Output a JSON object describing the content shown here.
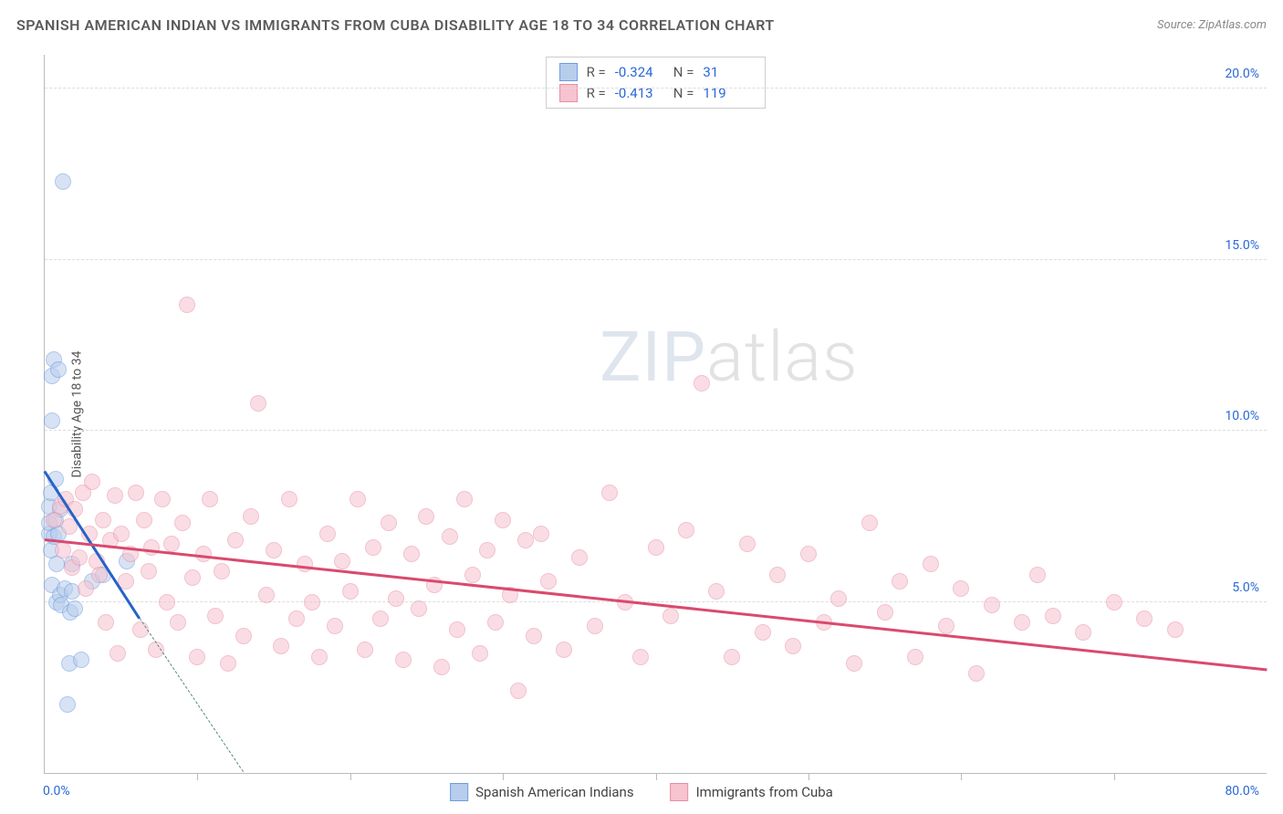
{
  "header": {
    "title": "SPANISH AMERICAN INDIAN VS IMMIGRANTS FROM CUBA DISABILITY AGE 18 TO 34 CORRELATION CHART",
    "source": "Source: ZipAtlas.com"
  },
  "watermark": {
    "bold": "ZIP",
    "thin": "atlas"
  },
  "chart": {
    "type": "scatter",
    "xlim": [
      0,
      80
    ],
    "ylim": [
      0,
      21
    ],
    "x_axis_labels": {
      "left": "0.0%",
      "right": "80.0%"
    },
    "y_gridlines": [
      5,
      10,
      15,
      20
    ],
    "y_labels": [
      "5.0%",
      "10.0%",
      "15.0%",
      "20.0%"
    ],
    "x_ticks": [
      10,
      20,
      30,
      40,
      50,
      60,
      70
    ],
    "y_axis_title": "Disability Age 18 to 34",
    "background_color": "#ffffff",
    "grid_color": "#dddddd",
    "axis_color": "#bbbbbb",
    "label_color": "#2968d8",
    "marker_size": 18,
    "marker_opacity": 0.55,
    "series": [
      {
        "name": "Spanish American Indians",
        "fill": "#b7cdec",
        "stroke": "#6d9be0",
        "trend_color": "#2563c9",
        "trend_dash_color": "#5b8a7a",
        "trend": {
          "x1": 0,
          "y1": 8.8,
          "x2": 6.2,
          "y2": 4.5,
          "dash_x2": 13,
          "dash_y2": 0
        },
        "stats": {
          "r": "-0.324",
          "n": "31"
        },
        "points": [
          [
            0.3,
            7.0
          ],
          [
            0.3,
            7.3
          ],
          [
            0.3,
            7.8
          ],
          [
            0.4,
            6.5
          ],
          [
            0.4,
            8.2
          ],
          [
            0.5,
            5.5
          ],
          [
            0.5,
            10.3
          ],
          [
            0.5,
            11.6
          ],
          [
            0.6,
            12.1
          ],
          [
            0.6,
            6.9
          ],
          [
            0.7,
            7.4
          ],
          [
            0.7,
            8.6
          ],
          [
            0.8,
            5.0
          ],
          [
            0.8,
            6.1
          ],
          [
            0.9,
            11.8
          ],
          [
            0.9,
            7.0
          ],
          [
            1.0,
            5.2
          ],
          [
            1.0,
            7.7
          ],
          [
            1.1,
            4.9
          ],
          [
            1.2,
            17.3
          ],
          [
            1.3,
            5.4
          ],
          [
            1.5,
            2.0
          ],
          [
            1.6,
            3.2
          ],
          [
            1.7,
            4.7
          ],
          [
            1.8,
            5.3
          ],
          [
            1.8,
            6.1
          ],
          [
            2.0,
            4.8
          ],
          [
            2.4,
            3.3
          ],
          [
            3.1,
            5.6
          ],
          [
            3.8,
            5.8
          ],
          [
            5.4,
            6.2
          ]
        ]
      },
      {
        "name": "Immigrants from Cuba",
        "fill": "#f6c3cf",
        "stroke": "#e98fa5",
        "trend_color": "#d94a6e",
        "trend": {
          "x1": 0,
          "y1": 6.8,
          "x2": 80,
          "y2": 3.0
        },
        "stats": {
          "r": "-0.413",
          "n": "119"
        },
        "points": [
          [
            0.6,
            7.4
          ],
          [
            1.0,
            7.8
          ],
          [
            1.2,
            6.5
          ],
          [
            1.4,
            8.0
          ],
          [
            1.6,
            7.2
          ],
          [
            1.8,
            6.0
          ],
          [
            2.0,
            7.7
          ],
          [
            2.3,
            6.3
          ],
          [
            2.5,
            8.2
          ],
          [
            2.7,
            5.4
          ],
          [
            2.9,
            7.0
          ],
          [
            3.1,
            8.5
          ],
          [
            3.4,
            6.2
          ],
          [
            3.6,
            5.8
          ],
          [
            3.8,
            7.4
          ],
          [
            4.0,
            4.4
          ],
          [
            4.3,
            6.8
          ],
          [
            4.6,
            8.1
          ],
          [
            4.8,
            3.5
          ],
          [
            5.0,
            7.0
          ],
          [
            5.3,
            5.6
          ],
          [
            5.6,
            6.4
          ],
          [
            6.0,
            8.2
          ],
          [
            6.3,
            4.2
          ],
          [
            6.5,
            7.4
          ],
          [
            6.8,
            5.9
          ],
          [
            7.0,
            6.6
          ],
          [
            7.3,
            3.6
          ],
          [
            7.7,
            8.0
          ],
          [
            8.0,
            5.0
          ],
          [
            8.3,
            6.7
          ],
          [
            8.7,
            4.4
          ],
          [
            9.0,
            7.3
          ],
          [
            9.3,
            13.7
          ],
          [
            9.7,
            5.7
          ],
          [
            10.0,
            3.4
          ],
          [
            10.4,
            6.4
          ],
          [
            10.8,
            8.0
          ],
          [
            11.2,
            4.6
          ],
          [
            11.6,
            5.9
          ],
          [
            12.0,
            3.2
          ],
          [
            12.5,
            6.8
          ],
          [
            13.0,
            4.0
          ],
          [
            13.5,
            7.5
          ],
          [
            14.0,
            10.8
          ],
          [
            14.5,
            5.2
          ],
          [
            15.0,
            6.5
          ],
          [
            15.5,
            3.7
          ],
          [
            16.0,
            8.0
          ],
          [
            16.5,
            4.5
          ],
          [
            17.0,
            6.1
          ],
          [
            17.5,
            5.0
          ],
          [
            18.0,
            3.4
          ],
          [
            18.5,
            7.0
          ],
          [
            19.0,
            4.3
          ],
          [
            19.5,
            6.2
          ],
          [
            20.0,
            5.3
          ],
          [
            20.5,
            8.0
          ],
          [
            21.0,
            3.6
          ],
          [
            21.5,
            6.6
          ],
          [
            22.0,
            4.5
          ],
          [
            22.5,
            7.3
          ],
          [
            23.0,
            5.1
          ],
          [
            23.5,
            3.3
          ],
          [
            24.0,
            6.4
          ],
          [
            24.5,
            4.8
          ],
          [
            25.0,
            7.5
          ],
          [
            25.5,
            5.5
          ],
          [
            26.0,
            3.1
          ],
          [
            26.5,
            6.9
          ],
          [
            27.0,
            4.2
          ],
          [
            27.5,
            8.0
          ],
          [
            28.0,
            5.8
          ],
          [
            28.5,
            3.5
          ],
          [
            29.0,
            6.5
          ],
          [
            29.5,
            4.4
          ],
          [
            30.0,
            7.4
          ],
          [
            30.5,
            5.2
          ],
          [
            31.0,
            2.4
          ],
          [
            31.5,
            6.8
          ],
          [
            32.0,
            4.0
          ],
          [
            32.5,
            7.0
          ],
          [
            33.0,
            5.6
          ],
          [
            34.0,
            3.6
          ],
          [
            35.0,
            6.3
          ],
          [
            36.0,
            4.3
          ],
          [
            37.0,
            8.2
          ],
          [
            38.0,
            5.0
          ],
          [
            39.0,
            3.4
          ],
          [
            40.0,
            6.6
          ],
          [
            41.0,
            4.6
          ],
          [
            42.0,
            7.1
          ],
          [
            43.0,
            11.4
          ],
          [
            44.0,
            5.3
          ],
          [
            45.0,
            3.4
          ],
          [
            46.0,
            6.7
          ],
          [
            47.0,
            4.1
          ],
          [
            48.0,
            5.8
          ],
          [
            49.0,
            3.7
          ],
          [
            50.0,
            6.4
          ],
          [
            51.0,
            4.4
          ],
          [
            52.0,
            5.1
          ],
          [
            53.0,
            3.2
          ],
          [
            54.0,
            7.3
          ],
          [
            55.0,
            4.7
          ],
          [
            56.0,
            5.6
          ],
          [
            57.0,
            3.4
          ],
          [
            58.0,
            6.1
          ],
          [
            59.0,
            4.3
          ],
          [
            60.0,
            5.4
          ],
          [
            61.0,
            2.9
          ],
          [
            62.0,
            4.9
          ],
          [
            64.0,
            4.4
          ],
          [
            65.0,
            5.8
          ],
          [
            66.0,
            4.6
          ],
          [
            68.0,
            4.1
          ],
          [
            70.0,
            5.0
          ],
          [
            72.0,
            4.5
          ],
          [
            74.0,
            4.2
          ]
        ]
      }
    ]
  },
  "legend": {
    "items": [
      {
        "label": "Spanish American Indians",
        "fill": "#b7cdec",
        "stroke": "#6d9be0"
      },
      {
        "label": "Immigrants from Cuba",
        "fill": "#f6c3cf",
        "stroke": "#e98fa5"
      }
    ]
  }
}
